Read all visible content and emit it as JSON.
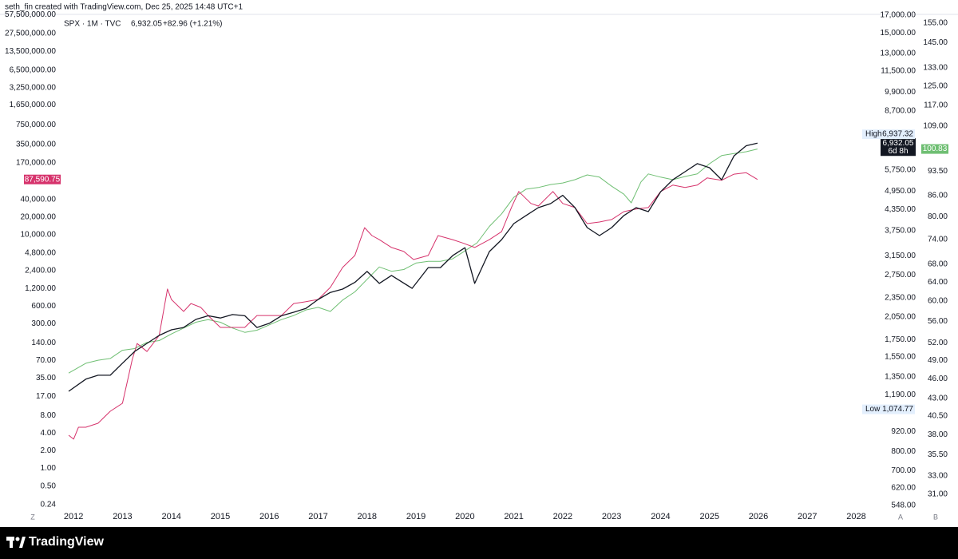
{
  "header": "seth_fin created with TradingView.com, Dec 25, 2025 14:48 UTC+1",
  "brand": "TradingView",
  "chart_data": {
    "type": "line",
    "legend_text": {
      "symbol": "SPX · 1M · TVC",
      "price": "6,932.05",
      "change": "+82.96 (+1.21%)"
    },
    "xlim": [
      2011.72,
      2028.04
    ],
    "xticks": [
      2012,
      2013,
      2014,
      2015,
      2016,
      2017,
      2018,
      2019,
      2020,
      2021,
      2022,
      2023,
      2024,
      2025,
      2026,
      2027,
      2028
    ],
    "y_axis_label": "A",
    "y2_axis_label": "B",
    "y3_axis_label": "Z",
    "yscale": "log",
    "y2scale": "log",
    "y3scale": "log",
    "ylim": [
      484.5,
      17080
    ],
    "yticks": [
      {
        "value": 17000,
        "label": "17,000.00"
      },
      {
        "value": 15000,
        "label": "15,000.00"
      },
      {
        "value": 13000,
        "label": "13,000.00"
      },
      {
        "value": 11500,
        "label": "11,500.00"
      },
      {
        "value": 9900,
        "label": "9,900.00"
      },
      {
        "value": 8700,
        "label": "8,700.00"
      },
      {
        "value": 5750,
        "label": "5,750.00"
      },
      {
        "value": 4950,
        "label": "4,950.00"
      },
      {
        "value": 4350,
        "label": "4,350.00"
      },
      {
        "value": 3750,
        "label": "3,750.00"
      },
      {
        "value": 3150,
        "label": "3,150.00"
      },
      {
        "value": 2750,
        "label": "2,750.00"
      },
      {
        "value": 2350,
        "label": "2,350.00"
      },
      {
        "value": 2050,
        "label": "2,050.00"
      },
      {
        "value": 1750,
        "label": "1,750.00"
      },
      {
        "value": 1550,
        "label": "1,550.00"
      },
      {
        "value": 1350,
        "label": "1,350.00"
      },
      {
        "value": 1190,
        "label": "1,190.00"
      },
      {
        "value": 920,
        "label": "920.00"
      },
      {
        "value": 800,
        "label": "800.00"
      },
      {
        "value": 700,
        "label": "700.00"
      },
      {
        "value": 620,
        "label": "620.00"
      },
      {
        "value": 548,
        "label": "548.00"
      }
    ],
    "y2lim": [
      28.1,
      159.7
    ],
    "y2ticks": [
      {
        "value": 155,
        "label": "155.00"
      },
      {
        "value": 145,
        "label": "145.00"
      },
      {
        "value": 133,
        "label": "133.00"
      },
      {
        "value": 125,
        "label": "125.00"
      },
      {
        "value": 117,
        "label": "117.00"
      },
      {
        "value": 109,
        "label": "109.00"
      },
      {
        "value": 93.5,
        "label": "93.50"
      },
      {
        "value": 86,
        "label": "86.00"
      },
      {
        "value": 80,
        "label": "80.00"
      },
      {
        "value": 74,
        "label": "74.00"
      },
      {
        "value": 68,
        "label": "68.00"
      },
      {
        "value": 64,
        "label": "64.00"
      },
      {
        "value": 60,
        "label": "60.00"
      },
      {
        "value": 56,
        "label": "56.00"
      },
      {
        "value": 52,
        "label": "52.00"
      },
      {
        "value": 49,
        "label": "49.00"
      },
      {
        "value": 46,
        "label": "46.00"
      },
      {
        "value": 43,
        "label": "43.00"
      },
      {
        "value": 40.5,
        "label": "40.50"
      },
      {
        "value": 38,
        "label": "38.00"
      },
      {
        "value": 35.5,
        "label": "35.50"
      },
      {
        "value": 33,
        "label": "33.00"
      },
      {
        "value": 31,
        "label": "31.00"
      }
    ],
    "y3lim": [
      0.1164,
      58300000
    ],
    "y3ticks": [
      {
        "value": 57500000,
        "label": "57,500,000.00"
      },
      {
        "value": 27500000,
        "label": "27,500,000.00"
      },
      {
        "value": 13500000,
        "label": "13,500,000.00"
      },
      {
        "value": 6500000,
        "label": "6,500,000.00"
      },
      {
        "value": 3250000,
        "label": "3,250,000.00"
      },
      {
        "value": 1650000,
        "label": "1,650,000.00"
      },
      {
        "value": 750000,
        "label": "750,000.00"
      },
      {
        "value": 350000,
        "label": "350,000.00"
      },
      {
        "value": 170000,
        "label": "170,000.00"
      },
      {
        "value": 40000,
        "label": "40,000.00"
      },
      {
        "value": 20000,
        "label": "20,000.00"
      },
      {
        "value": 10000,
        "label": "10,000.00"
      },
      {
        "value": 4800,
        "label": "4,800.00"
      },
      {
        "value": 2400,
        "label": "2,400.00"
      },
      {
        "value": 1200,
        "label": "1,200.00"
      },
      {
        "value": 600,
        "label": "600.00"
      },
      {
        "value": 300,
        "label": "300.00"
      },
      {
        "value": 140,
        "label": "140.00"
      },
      {
        "value": 70,
        "label": "70.00"
      },
      {
        "value": 35,
        "label": "35.00"
      },
      {
        "value": 17,
        "label": "17.00"
      },
      {
        "value": 8,
        "label": "8.00"
      },
      {
        "value": 4,
        "label": "4.00"
      },
      {
        "value": 2,
        "label": "2.00"
      },
      {
        "value": 1,
        "label": "1.00"
      },
      {
        "value": 0.5,
        "label": "0.50"
      },
      {
        "value": 0.24,
        "label": "0.24"
      }
    ],
    "annotations": [
      {
        "text": "High",
        "value": 6937.32,
        "value_label": "6,937.32"
      },
      {
        "text": "Low",
        "value": 1074.77,
        "value_label": "1,074.77"
      }
    ],
    "series": [
      {
        "color": "#6fbf73",
        "axis": "y2",
        "badge": "100.83",
        "x": [
          2011.9,
          2012.25,
          2012.5,
          2012.75,
          2013.0,
          2013.25,
          2013.5,
          2013.75,
          2014.0,
          2014.25,
          2014.5,
          2014.75,
          2015.0,
          2015.25,
          2015.5,
          2015.75,
          2016.0,
          2016.25,
          2016.5,
          2016.75,
          2017.0,
          2017.25,
          2017.5,
          2017.75,
          2018.0,
          2018.25,
          2018.5,
          2018.75,
          2019.0,
          2019.25,
          2019.5,
          2019.75,
          2020.0,
          2020.25,
          2020.5,
          2020.75,
          2021.0,
          2021.25,
          2021.5,
          2021.75,
          2022.0,
          2022.25,
          2022.5,
          2022.75,
          2023.0,
          2023.25,
          2023.4,
          2023.6,
          2023.75,
          2024.0,
          2024.25,
          2024.5,
          2024.75,
          2025.0,
          2025.25,
          2025.5,
          2025.75,
          2025.98
        ],
        "values": [
          46.9,
          48.5,
          49.0,
          49.3,
          50.7,
          51.0,
          52.1,
          52.4,
          53.6,
          54.7,
          55.8,
          56.3,
          55.8,
          54.7,
          53.9,
          54.3,
          55.3,
          56.3,
          57.1,
          58.2,
          58.7,
          57.9,
          60.2,
          61.9,
          64.6,
          67.4,
          66.4,
          66.8,
          68.3,
          68.7,
          68.7,
          69.3,
          71.2,
          73.2,
          77.4,
          80.8,
          85.5,
          87.9,
          88.4,
          89.3,
          89.8,
          90.8,
          92.3,
          91.6,
          88.8,
          86.4,
          83.9,
          90.1,
          92.6,
          91.6,
          90.8,
          91.8,
          92.6,
          95.9,
          98.6,
          99.3,
          99.9,
          100.83
        ]
      },
      {
        "color": "#d6336c",
        "axis": "y3",
        "badge": "87,590.75",
        "x": [
          2011.9,
          2012.0,
          2012.1,
          2012.25,
          2012.5,
          2012.75,
          2013.0,
          2013.2,
          2013.3,
          2013.5,
          2013.75,
          2013.92,
          2014.0,
          2014.25,
          2014.4,
          2014.6,
          2014.75,
          2015.0,
          2015.25,
          2015.5,
          2015.75,
          2016.0,
          2016.25,
          2016.5,
          2016.75,
          2017.0,
          2017.25,
          2017.5,
          2017.75,
          2017.95,
          2018.1,
          2018.25,
          2018.5,
          2018.75,
          2018.95,
          2019.25,
          2019.45,
          2019.75,
          2019.95,
          2020.2,
          2020.5,
          2020.75,
          2020.95,
          2021.1,
          2021.35,
          2021.5,
          2021.8,
          2022.0,
          2022.25,
          2022.5,
          2022.75,
          2023.0,
          2023.25,
          2023.5,
          2023.75,
          2024.0,
          2024.25,
          2024.5,
          2024.75,
          2024.95,
          2025.25,
          2025.5,
          2025.75,
          2025.98
        ],
        "values": [
          3.7,
          3.17,
          5.07,
          5.07,
          5.93,
          9.5,
          13,
          73.3,
          137,
          100,
          188,
          1171,
          777,
          485,
          662,
          568,
          413,
          258,
          258,
          258,
          413,
          413,
          413,
          662,
          710,
          777,
          1247,
          2740,
          4390,
          13120,
          9600,
          8190,
          6010,
          5140,
          3740,
          4390,
          9600,
          8190,
          7190,
          6010,
          8190,
          11200,
          29000,
          54500,
          34000,
          30800,
          54500,
          34000,
          29000,
          15400,
          16400,
          18100,
          24700,
          27300,
          29000,
          54500,
          70000,
          64000,
          70000,
          93000,
          85000,
          108000,
          114000,
          87590.75
        ]
      },
      {
        "color": "#131722",
        "axis": "y",
        "badge": "6,932.05",
        "badge_sub": "6d 8h",
        "x": [
          2011.9,
          2012.25,
          2012.5,
          2012.75,
          2013.0,
          2013.25,
          2013.5,
          2013.75,
          2014.0,
          2014.25,
          2014.5,
          2014.75,
          2015.0,
          2015.25,
          2015.5,
          2015.75,
          2016.0,
          2016.25,
          2016.5,
          2016.75,
          2017.0,
          2017.25,
          2017.5,
          2017.75,
          2018.0,
          2018.25,
          2018.5,
          2018.92,
          2019.25,
          2019.5,
          2019.75,
          2020.0,
          2020.2,
          2020.5,
          2020.75,
          2021.0,
          2021.25,
          2021.5,
          2021.75,
          2022.0,
          2022.25,
          2022.5,
          2022.75,
          2023.0,
          2023.25,
          2023.5,
          2023.75,
          2024.0,
          2024.25,
          2024.5,
          2024.75,
          2025.0,
          2025.25,
          2025.5,
          2025.75,
          2025.98
        ],
        "values": [
          1219,
          1327,
          1364,
          1364,
          1484,
          1612,
          1705,
          1803,
          1875,
          1906,
          2017,
          2069,
          2037,
          2087,
          2069,
          1906,
          1962,
          2069,
          2121,
          2179,
          2320,
          2437,
          2495,
          2614,
          2822,
          2595,
          2745,
          2507,
          2900,
          2900,
          3153,
          3332,
          2595,
          3245,
          3526,
          3945,
          4174,
          4413,
          4538,
          4810,
          4413,
          3837,
          3628,
          3837,
          4174,
          4413,
          4291,
          4930,
          5365,
          5676,
          6005,
          5838,
          5365,
          6338,
          6807,
          6932.05
        ]
      }
    ]
  }
}
